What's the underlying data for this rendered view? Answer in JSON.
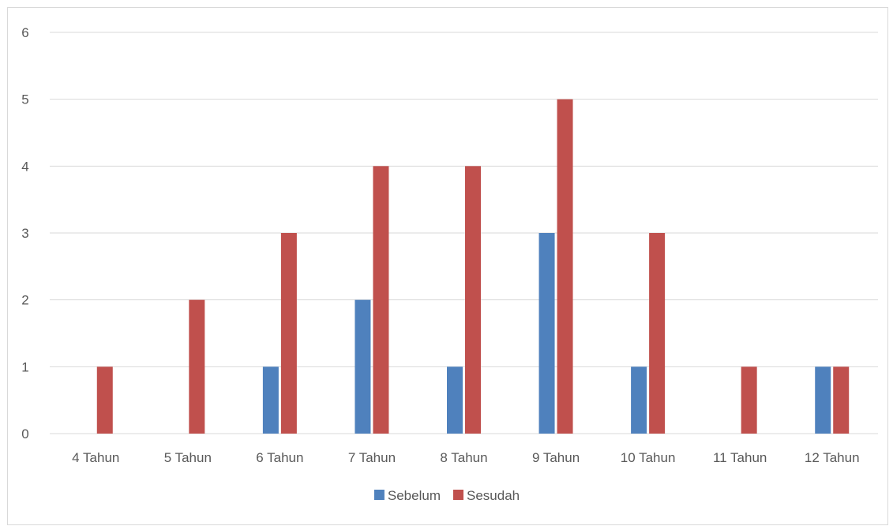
{
  "chart_data": {
    "type": "bar",
    "title": "",
    "xlabel": "",
    "ylabel": "",
    "ylim": [
      0,
      6
    ],
    "yticks": [
      0,
      1,
      2,
      3,
      4,
      5,
      6
    ],
    "grid": true,
    "legend_position": "bottom",
    "categories": [
      "4 Tahun",
      "5 Tahun",
      "6 Tahun",
      "7 Tahun",
      "8 Tahun",
      "9 Tahun",
      "10 Tahun",
      "11 Tahun",
      "12 Tahun"
    ],
    "series": [
      {
        "name": "Sebelum",
        "color": "#4f81bd",
        "values": [
          0,
          0,
          1,
          2,
          1,
          3,
          1,
          0,
          1
        ]
      },
      {
        "name": "Sesudah",
        "color": "#c0504d",
        "values": [
          1,
          2,
          3,
          4,
          4,
          5,
          3,
          1,
          1
        ]
      }
    ]
  }
}
